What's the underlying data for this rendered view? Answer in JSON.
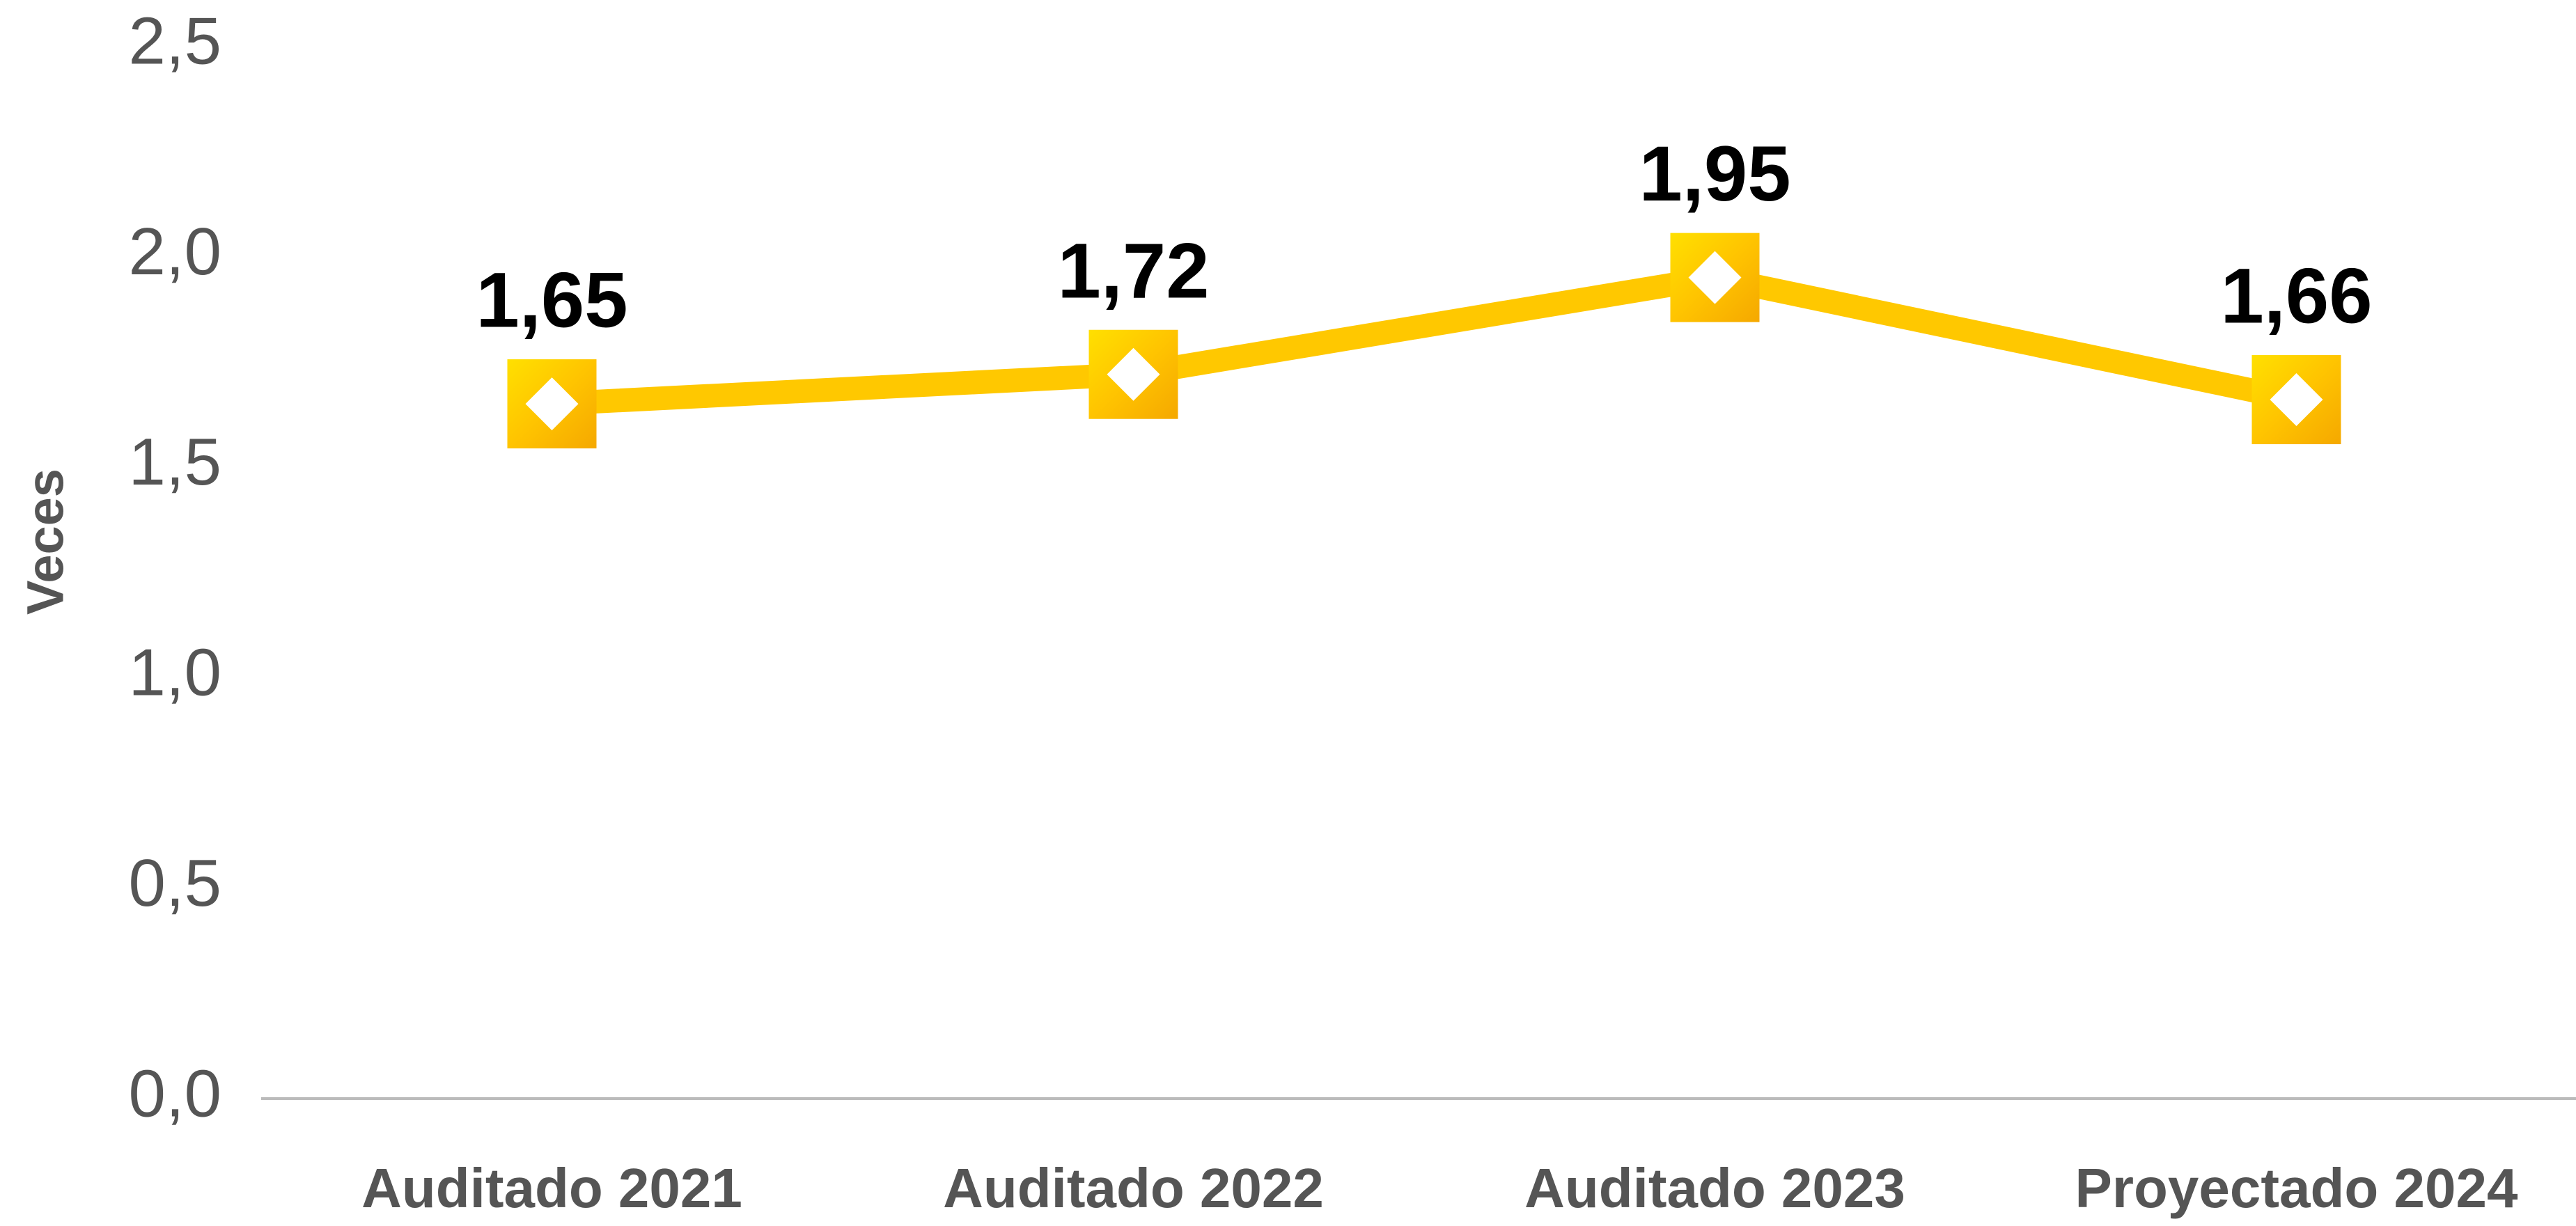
{
  "chart_data": {
    "type": "line",
    "ylabel": "Veces",
    "categories": [
      "Auditado 2021",
      "Auditado 2022",
      "Auditado 2023",
      "Proyectado 2024"
    ],
    "series": [
      {
        "color": "#FFC800",
        "values": [
          1.65,
          1.72,
          1.95,
          1.66
        ],
        "value_labels": [
          "1,65",
          "1,72",
          "1,95",
          "1,66"
        ]
      }
    ],
    "ylim": [
      0,
      2.5
    ],
    "yticks": [
      {
        "value": 0,
        "label": "0,0"
      },
      {
        "value": 0.5,
        "label": "0,5"
      },
      {
        "value": 1,
        "label": "1,0"
      },
      {
        "value": 1.5,
        "label": "1,5"
      },
      {
        "value": 2,
        "label": "2,0"
      },
      {
        "value": 2.5,
        "label": "2,5"
      }
    ],
    "grid": false
  }
}
